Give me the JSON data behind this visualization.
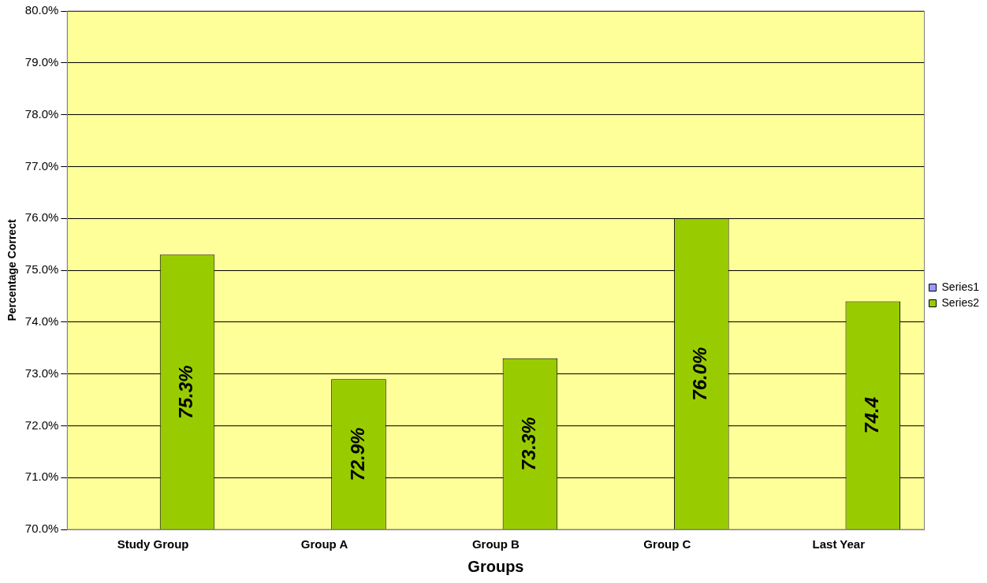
{
  "chart_data": {
    "type": "bar",
    "xlabel": "Groups",
    "ylabel": "Percentage Correct",
    "categories": [
      "Study Group",
      "Group A",
      "Group B",
      "Group C",
      "Last Year"
    ],
    "series": [
      {
        "name": "Series1",
        "color": "#9999ff",
        "values": [
          null,
          null,
          null,
          null,
          null
        ]
      },
      {
        "name": "Series2",
        "color": "#99cc00",
        "values": [
          75.3,
          72.9,
          73.3,
          76.0,
          74.4
        ],
        "value_labels": [
          "75.3%",
          "72.9%",
          "73.3%",
          "76.0%",
          "74.4"
        ]
      }
    ],
    "ylim": [
      70,
      80
    ],
    "yticks": [
      {
        "value": 70,
        "label": "70.0%"
      },
      {
        "value": 71,
        "label": "71.0%"
      },
      {
        "value": 72,
        "label": "72.0%"
      },
      {
        "value": 73,
        "label": "73.0%"
      },
      {
        "value": 74,
        "label": "74.0%"
      },
      {
        "value": 75,
        "label": "75.0%"
      },
      {
        "value": 76,
        "label": "76.0%"
      },
      {
        "value": 77,
        "label": "77.0%"
      },
      {
        "value": 78,
        "label": "78.0%"
      },
      {
        "value": 79,
        "label": "79.0%"
      },
      {
        "value": 80,
        "label": "80.0%"
      }
    ],
    "grid": "y",
    "legend": "right"
  }
}
